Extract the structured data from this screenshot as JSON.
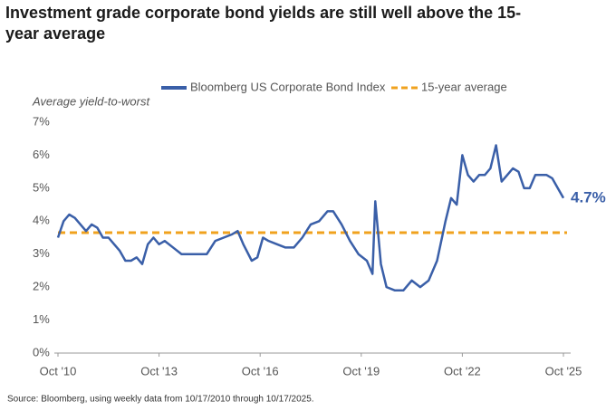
{
  "chart_data": {
    "type": "line",
    "title": "Investment grade corporate bond yields are still well above the 15-year average",
    "ylabel": "Average yield-to-worst",
    "source": "Source: Bloomberg, using weekly data from 10/17/2010 through 10/17/2025.",
    "x": [
      "2010-10",
      "2010-12",
      "2011-02",
      "2011-04",
      "2011-06",
      "2011-08",
      "2011-10",
      "2011-12",
      "2012-02",
      "2012-04",
      "2012-06",
      "2012-08",
      "2012-10",
      "2012-12",
      "2013-02",
      "2013-04",
      "2013-06",
      "2013-08",
      "2013-10",
      "2013-12",
      "2014-03",
      "2014-06",
      "2014-09",
      "2014-12",
      "2015-03",
      "2015-06",
      "2015-09",
      "2015-12",
      "2016-02",
      "2016-04",
      "2016-07",
      "2016-09",
      "2016-11",
      "2017-01",
      "2017-04",
      "2017-07",
      "2017-10",
      "2018-01",
      "2018-04",
      "2018-07",
      "2018-10",
      "2018-12",
      "2019-03",
      "2019-06",
      "2019-09",
      "2019-12",
      "2020-02",
      "2020-03",
      "2020-05",
      "2020-07",
      "2020-10",
      "2021-01",
      "2021-04",
      "2021-07",
      "2021-10",
      "2022-01",
      "2022-04",
      "2022-06",
      "2022-08",
      "2022-10",
      "2022-12",
      "2023-02",
      "2023-04",
      "2023-06",
      "2023-08",
      "2023-10",
      "2023-12",
      "2024-02",
      "2024-04",
      "2024-06",
      "2024-08",
      "2024-10",
      "2024-12",
      "2025-02",
      "2025-04",
      "2025-06",
      "2025-08",
      "2025-10"
    ],
    "series": [
      {
        "name": "Bloomberg US Corporate Bond Index",
        "color": "#3a5fa8",
        "values": [
          3.5,
          4.0,
          4.2,
          4.1,
          3.9,
          3.7,
          3.9,
          3.8,
          3.5,
          3.5,
          3.3,
          3.1,
          2.8,
          2.8,
          2.9,
          2.7,
          3.3,
          3.5,
          3.3,
          3.4,
          3.2,
          3.0,
          3.0,
          3.0,
          3.0,
          3.4,
          3.5,
          3.6,
          3.7,
          3.3,
          2.8,
          2.9,
          3.5,
          3.4,
          3.3,
          3.2,
          3.2,
          3.5,
          3.9,
          4.0,
          4.3,
          4.3,
          3.9,
          3.4,
          3.0,
          2.8,
          2.4,
          4.6,
          2.7,
          2.0,
          1.9,
          1.9,
          2.2,
          2.0,
          2.2,
          2.8,
          4.0,
          4.7,
          4.5,
          6.0,
          5.4,
          5.2,
          5.4,
          5.4,
          5.6,
          6.3,
          5.2,
          5.4,
          5.6,
          5.5,
          5.0,
          5.0,
          5.4,
          5.4,
          5.4,
          5.3,
          5.0,
          4.7
        ],
        "value_labels": [
          null,
          null,
          null,
          null,
          null,
          null,
          null,
          null,
          null,
          null,
          null,
          null,
          null,
          null,
          null,
          null,
          null,
          null,
          null,
          null,
          null,
          null,
          null,
          null,
          null,
          null,
          null,
          null,
          null,
          null,
          null,
          null,
          null,
          null,
          null,
          null,
          null,
          null,
          null,
          null,
          null,
          null,
          null,
          null,
          null,
          null,
          null,
          null,
          null,
          null,
          null,
          null,
          null,
          null,
          null,
          null,
          null,
          null,
          null,
          null,
          null,
          null,
          null,
          null,
          null,
          null,
          null,
          null,
          null,
          null,
          null,
          null,
          null,
          null,
          null,
          null,
          null,
          "4.7%"
        ]
      }
    ],
    "reference_line": {
      "name": "15-year average",
      "value": 3.65,
      "color": "#f0a21e"
    },
    "xlim": [
      "2010-10",
      "2025-10"
    ],
    "xticks": [
      {
        "value": "2010-10",
        "label": "Oct '10"
      },
      {
        "value": "2013-10",
        "label": "Oct '13"
      },
      {
        "value": "2016-10",
        "label": "Oct '16"
      },
      {
        "value": "2019-10",
        "label": "Oct '19"
      },
      {
        "value": "2022-10",
        "label": "Oct '22"
      },
      {
        "value": "2025-10",
        "label": "Oct '25"
      }
    ],
    "ylim": [
      0,
      7
    ],
    "yticks": [
      {
        "value": 0,
        "label": "0%"
      },
      {
        "value": 1,
        "label": "1%"
      },
      {
        "value": 2,
        "label": "2%"
      },
      {
        "value": 3,
        "label": "3%"
      },
      {
        "value": 4,
        "label": "4%"
      },
      {
        "value": 5,
        "label": "5%"
      },
      {
        "value": 6,
        "label": "6%"
      },
      {
        "value": 7,
        "label": "7%"
      }
    ]
  }
}
